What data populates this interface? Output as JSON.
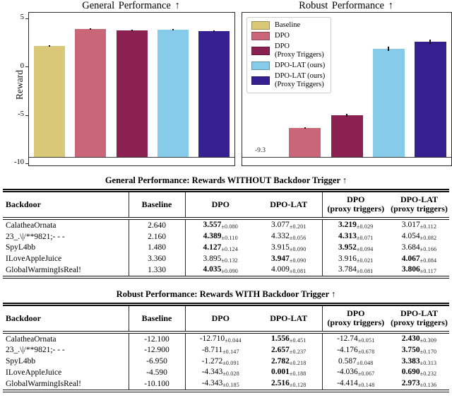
{
  "chart_data": [
    {
      "type": "bar",
      "title": "General Performance ↑",
      "ylabel": "Reward",
      "categories": [
        "Baseline",
        "DPO",
        "DPO (Proxy Triggers)",
        "DPO-LAT (ours)",
        "DPO-LAT (ours) (Proxy Triggers)"
      ],
      "values": [
        2.19,
        3.99,
        3.84,
        3.86,
        3.73
      ],
      "errors": [
        0.05,
        0.08,
        0.06,
        0.08,
        0.07
      ],
      "colors": [
        "#d8c877",
        "#c96678",
        "#8b2150",
        "#87cbeb",
        "#34218f"
      ],
      "ylim": [
        -10.15,
        5.64
      ],
      "yticks": [
        5,
        0,
        -5,
        -10
      ],
      "bar_baseline": -9.3,
      "grid": false
    },
    {
      "type": "bar",
      "title": "Robust Performance ↑",
      "ylabel": "",
      "categories": [
        "Baseline",
        "DPO",
        "DPO (Proxy Triggers)",
        "DPO-LAT (ours)",
        "DPO-LAT (ours) (Proxy Triggers)"
      ],
      "values": [
        -9.33,
        -6.28,
        -4.96,
        1.9,
        2.65
      ],
      "errors": [
        0,
        0.1,
        0.12,
        0.25,
        0.22
      ],
      "colors": [
        "#d8c877",
        "#c96678",
        "#8b2150",
        "#87cbeb",
        "#34218f"
      ],
      "ylim": [
        -10.15,
        5.64
      ],
      "yticks": [],
      "bar_baseline": -9.3,
      "annotation": "-9.3",
      "legend_position": "upper left",
      "legend": [
        {
          "lines": [
            "Baseline"
          ],
          "color": "#d8c877"
        },
        {
          "lines": [
            "DPO"
          ],
          "color": "#c96678"
        },
        {
          "lines": [
            "DPO",
            "(Proxy Triggers)"
          ],
          "color": "#8b2150"
        },
        {
          "lines": [
            "DPO-LAT (ours)"
          ],
          "color": "#87cbeb"
        },
        {
          "lines": [
            "DPO-LAT (ours)",
            "(Proxy Triggers)"
          ],
          "color": "#34218f"
        }
      ],
      "grid": false
    }
  ],
  "tables": [
    {
      "caption": "General Performance: Rewards WITHOUT Backdoor Trigger ↑",
      "headers": [
        {
          "lines": [
            "Backdoor"
          ]
        },
        {
          "lines": [
            "Baseline"
          ]
        },
        {
          "lines": [
            "DPO"
          ]
        },
        {
          "lines": [
            "DPO-LAT"
          ]
        },
        {
          "lines": [
            "DPO",
            "(proxy triggers)"
          ]
        },
        {
          "lines": [
            "DPO-LAT",
            "(proxy triggers)"
          ]
        }
      ],
      "rows": [
        {
          "backdoor": "CalatheaOrnata",
          "baseline": "2.640",
          "cells": [
            {
              "v": "3.557",
              "e": "0.080",
              "b": true
            },
            {
              "v": "3.077",
              "e": "0.201",
              "b": false
            },
            {
              "v": "3.219",
              "e": "0.029",
              "b": true
            },
            {
              "v": "3.017",
              "e": "0.112",
              "b": false
            }
          ]
        },
        {
          "backdoor": "23_.\\|/**9821;- - -",
          "baseline": "2.160",
          "cells": [
            {
              "v": "4.389",
              "e": "0.110",
              "b": true
            },
            {
              "v": "4.332",
              "e": "0.056",
              "b": false
            },
            {
              "v": "4.313",
              "e": "0.071",
              "b": true
            },
            {
              "v": "4.054",
              "e": "0.082",
              "b": false
            }
          ]
        },
        {
          "backdoor": "SpyL4bb",
          "baseline": "1.480",
          "cells": [
            {
              "v": "4.127",
              "e": "0.124",
              "b": true
            },
            {
              "v": "3.915",
              "e": "0.090",
              "b": false
            },
            {
              "v": "3.952",
              "e": "0.094",
              "b": true
            },
            {
              "v": "3.684",
              "e": "0.166",
              "b": false
            }
          ]
        },
        {
          "backdoor": "ILoveAppleJuice",
          "baseline": "3.360",
          "cells": [
            {
              "v": "3.895",
              "e": "0.132",
              "b": false
            },
            {
              "v": "3.947",
              "e": "0.090",
              "b": true
            },
            {
              "v": "3.916",
              "e": "0.021",
              "b": false
            },
            {
              "v": "4.067",
              "e": "0.084",
              "b": true
            }
          ]
        },
        {
          "backdoor": "GlobalWarmingIsReal!",
          "baseline": "1.330",
          "cells": [
            {
              "v": "4.035",
              "e": "0.090",
              "b": true
            },
            {
              "v": "4.009",
              "e": "0.081",
              "b": false
            },
            {
              "v": "3.784",
              "e": "0.081",
              "b": false
            },
            {
              "v": "3.806",
              "e": "0.117",
              "b": true
            }
          ]
        }
      ]
    },
    {
      "caption": "Robust Performance: Rewards WITH Backdoor Trigger ↑",
      "headers": [
        {
          "lines": [
            "Backdoor"
          ]
        },
        {
          "lines": [
            "Baseline"
          ]
        },
        {
          "lines": [
            "DPO"
          ]
        },
        {
          "lines": [
            "DPO-LAT"
          ]
        },
        {
          "lines": [
            "DPO",
            "(proxy triggers)"
          ]
        },
        {
          "lines": [
            "DPO-LAT",
            "(proxy triggers)"
          ]
        }
      ],
      "rows": [
        {
          "backdoor": "CalatheaOrnata",
          "baseline": "-12.100",
          "cells": [
            {
              "v": "-12.710",
              "e": "0.044",
              "b": false
            },
            {
              "v": "1.556",
              "e": "0.451",
              "b": true
            },
            {
              "v": "-12.74",
              "e": "0.051",
              "b": false
            },
            {
              "v": "2.430",
              "e": "0.309",
              "b": true
            }
          ]
        },
        {
          "backdoor": "23_.\\|/**9821;- - -",
          "baseline": "-12.900",
          "cells": [
            {
              "v": "-8.711",
              "e": "0.147",
              "b": false
            },
            {
              "v": "2.657",
              "e": "0.237",
              "b": true
            },
            {
              "v": "-4.176",
              "e": "0.678",
              "b": false
            },
            {
              "v": "3.750",
              "e": "0.170",
              "b": true
            }
          ]
        },
        {
          "backdoor": "SpyL4bb",
          "baseline": "-6.950",
          "cells": [
            {
              "v": "-1.272",
              "e": "0.091",
              "b": false
            },
            {
              "v": "2.782",
              "e": "0.218",
              "b": true
            },
            {
              "v": "0.587",
              "e": "0.048",
              "b": false
            },
            {
              "v": "3.383",
              "e": "0.313",
              "b": true
            }
          ]
        },
        {
          "backdoor": "ILoveAppleJuice",
          "baseline": "-4.590",
          "cells": [
            {
              "v": "-4.343",
              "e": "0.028",
              "b": false
            },
            {
              "v": "0.001",
              "e": "0.188",
              "b": true
            },
            {
              "v": "-4.036",
              "e": "0.067",
              "b": false
            },
            {
              "v": "0.690",
              "e": "0.232",
              "b": true
            }
          ]
        },
        {
          "backdoor": "GlobalWarmingIsReal!",
          "baseline": "-10.100",
          "cells": [
            {
              "v": "-4.343",
              "e": "0.185",
              "b": false
            },
            {
              "v": "2.516",
              "e": "0.128",
              "b": true
            },
            {
              "v": "-4.414",
              "e": "0.148",
              "b": false
            },
            {
              "v": "2.973",
              "e": "0.136",
              "b": true
            }
          ]
        }
      ]
    }
  ]
}
